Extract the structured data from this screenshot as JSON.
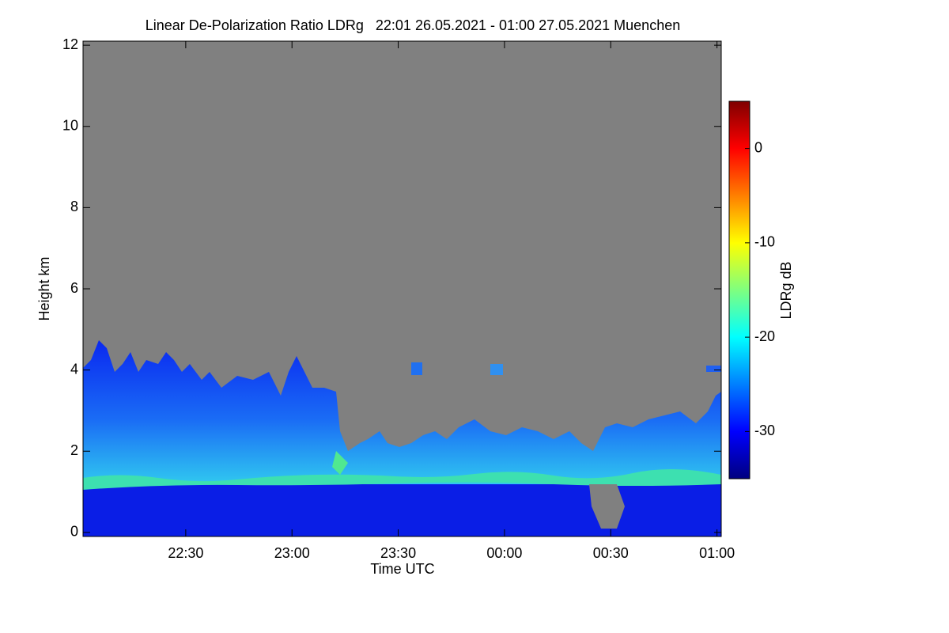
{
  "chart_data": {
    "type": "heatmap",
    "title": "Linear De-Polarization Ratio LDRg   22:01 26.05.2021 - 01:00 27.05.2021 Muenchen",
    "x_label": "Time UTC",
    "y_label": "Height km",
    "xlim": [
      22.0167,
      25.02
    ],
    "xticks": [
      {
        "value": 22.5,
        "label": "22:30"
      },
      {
        "value": 23,
        "label": "23:00"
      },
      {
        "value": 23.5,
        "label": "23:30"
      },
      {
        "value": 24,
        "label": "00:00"
      },
      {
        "value": 24.5,
        "label": "00:30"
      },
      {
        "value": 25,
        "label": "01:00"
      }
    ],
    "ylim": [
      -0.1,
      12.1
    ],
    "yticks": [
      0,
      2,
      4,
      6,
      8,
      10,
      12
    ],
    "colorbar": {
      "label": "LDRg dB",
      "lim": [
        -35,
        5
      ],
      "ticks": [
        0,
        -10,
        -20,
        -30
      ],
      "colormap": [
        "#00007f",
        "#0000ff",
        "#007fff",
        "#00ffff",
        "#7fff7f",
        "#ffff00",
        "#ff7f00",
        "#ff0000",
        "#7f0000"
      ]
    }
  }
}
